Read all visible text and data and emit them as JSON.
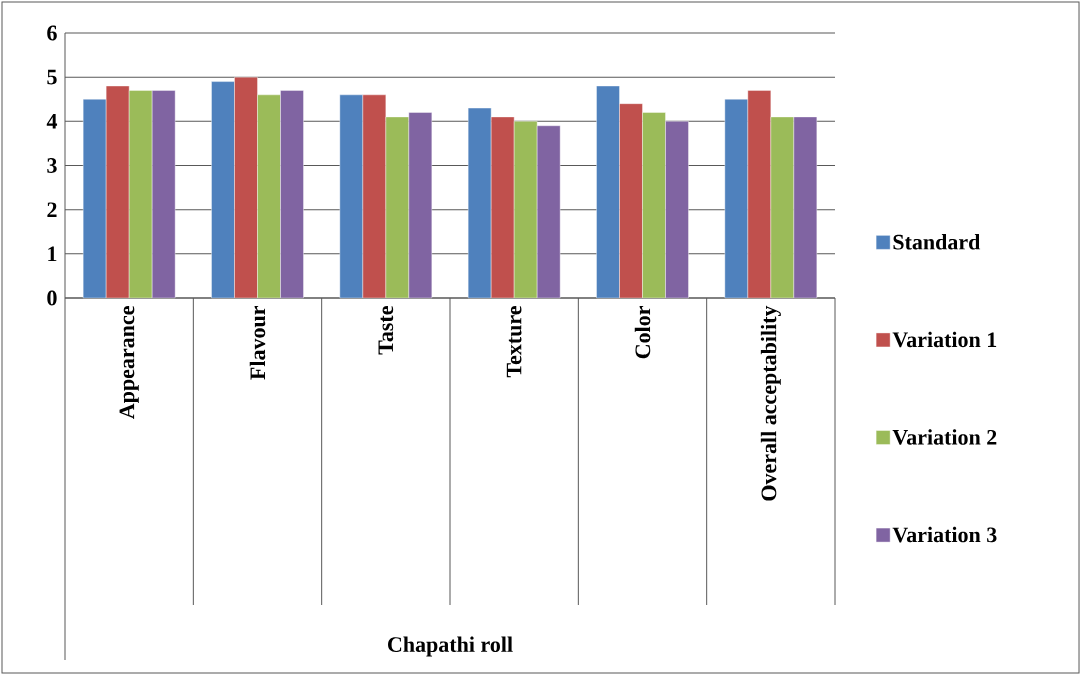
{
  "chart_data": {
    "type": "bar",
    "annotations": [
      "Chapathi roll"
    ],
    "categories": [
      "Appearance",
      "Flavour",
      "Taste",
      "Texture",
      "Color",
      "Overall acceptability"
    ],
    "series": [
      {
        "name": "Standard",
        "color": "#4f81bd",
        "values": [
          4.5,
          4.9,
          4.6,
          4.3,
          4.8,
          4.5
        ]
      },
      {
        "name": "Variation 1",
        "color": "#c0504d",
        "values": [
          4.8,
          5.0,
          4.6,
          4.1,
          4.4,
          4.7
        ]
      },
      {
        "name": "Variation 2",
        "color": "#9bbb59",
        "values": [
          4.7,
          4.6,
          4.1,
          4.0,
          4.2,
          4.1
        ]
      },
      {
        "name": "Variation 3",
        "color": "#8064a2",
        "values": [
          4.7,
          4.7,
          4.2,
          3.9,
          4.0,
          4.1
        ]
      }
    ],
    "ylim": [
      0,
      6
    ],
    "yticks": [
      0,
      1,
      2,
      3,
      4,
      5,
      6
    ],
    "grid": "y",
    "legend": "right"
  }
}
